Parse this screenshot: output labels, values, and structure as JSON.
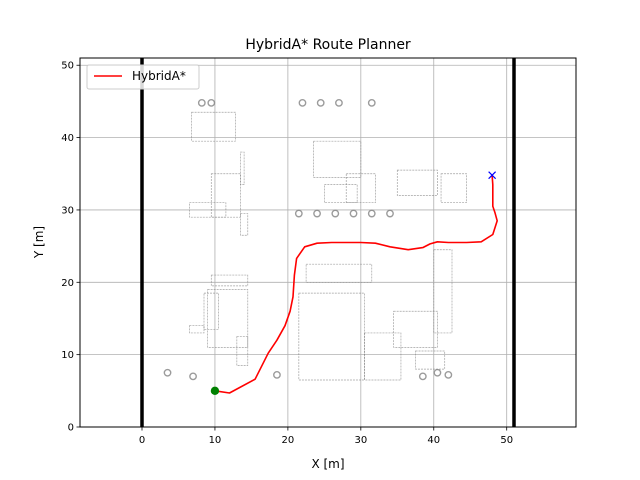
{
  "chart_data": {
    "type": "line",
    "title": "HybridA* Route Planner",
    "xlabel": "X [m]",
    "ylabel": "Y [m]",
    "xlim": [
      -8.5,
      59.5
    ],
    "ylim": [
      0,
      51
    ],
    "xticks": [
      0,
      10,
      20,
      30,
      40,
      50
    ],
    "yticks": [
      0,
      10,
      20,
      30,
      40,
      50
    ],
    "grid": true,
    "legend": "top-left",
    "series": [
      {
        "name": "HybridA*",
        "color": "#ff0000",
        "x": [
          10.0,
          12.0,
          15.5,
          17.3,
          18.5,
          19.6,
          20.3,
          20.7,
          20.9,
          21.2,
          22.3,
          24.0,
          26.0,
          28.0,
          30.0,
          32.0,
          34.0,
          36.5,
          38.5,
          39.5,
          40.5,
          42.0,
          44.5,
          46.5,
          48.1,
          48.7,
          48.4,
          48.1,
          48.1,
          48.0
        ],
        "y": [
          5.0,
          4.7,
          6.6,
          10.2,
          12.0,
          14.0,
          16.0,
          18.0,
          21.0,
          23.3,
          24.9,
          25.4,
          25.5,
          25.5,
          25.5,
          25.4,
          24.9,
          24.5,
          24.8,
          25.3,
          25.6,
          25.5,
          25.5,
          25.6,
          26.6,
          28.5,
          29.6,
          30.5,
          33.5,
          34.8
        ]
      }
    ],
    "markers": [
      {
        "kind": "start",
        "x": 10.0,
        "y": 5.0,
        "color": "#008000",
        "shape": "circle"
      },
      {
        "kind": "goal",
        "x": 48.0,
        "y": 34.8,
        "color": "#0000ff",
        "shape": "x"
      }
    ],
    "boundary_x": [
      0,
      51
    ],
    "background_map_color": "#7a7a7a"
  }
}
